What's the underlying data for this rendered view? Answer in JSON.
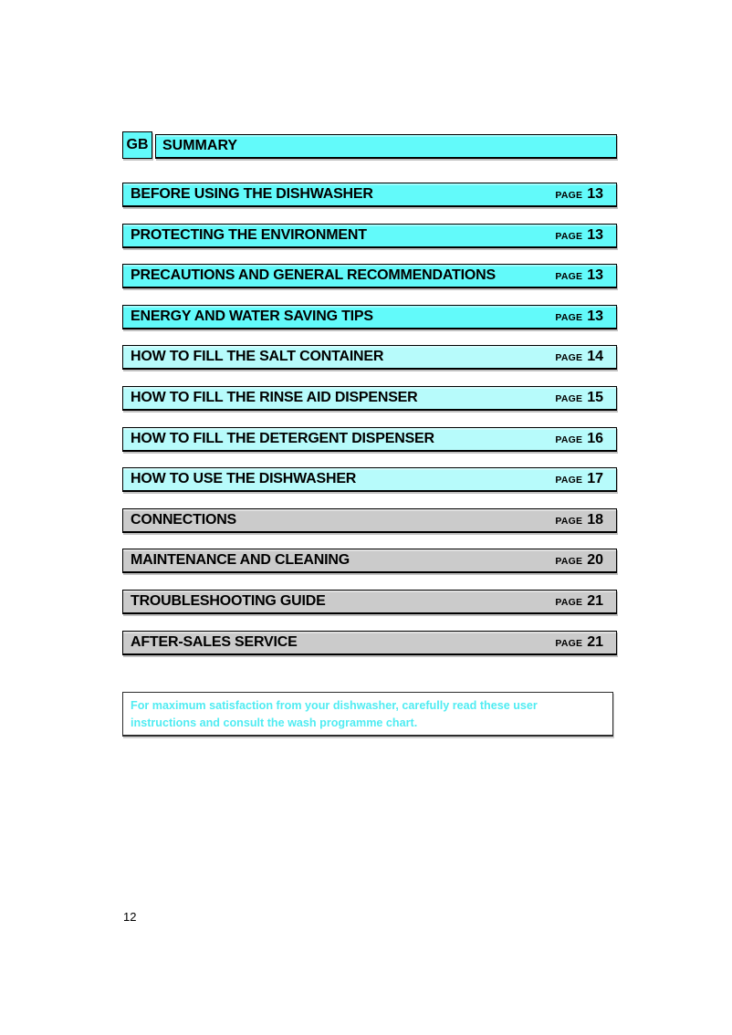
{
  "page": {
    "language_badge": "GB",
    "title": "SUMMARY",
    "page_label": "PAGE",
    "page_number": "12"
  },
  "toc": {
    "entries": [
      {
        "title": "BEFORE USING THE DISHWASHER",
        "page": "13",
        "group": "cyan"
      },
      {
        "title": "PROTECTING THE ENVIRONMENT",
        "page": "13",
        "group": "cyan"
      },
      {
        "title": "PRECAUTIONS AND GENERAL RECOMMENDATIONS",
        "page": "13",
        "group": "cyan"
      },
      {
        "title": "ENERGY AND WATER SAVING TIPS",
        "page": "13",
        "group": "cyan"
      },
      {
        "title": "HOW TO FILL THE SALT CONTAINER",
        "page": "14",
        "group": "pale_cyan"
      },
      {
        "title": "HOW TO FILL THE RINSE AID DISPENSER",
        "page": "15",
        "group": "pale_cyan"
      },
      {
        "title": "HOW TO FILL THE DETERGENT DISPENSER",
        "page": "16",
        "group": "pale_cyan"
      },
      {
        "title": "HOW TO USE THE DISHWASHER",
        "page": "17",
        "group": "pale_cyan"
      },
      {
        "title": "CONNECTIONS",
        "page": "18",
        "group": "gray"
      },
      {
        "title": "MAINTENANCE AND CLEANING",
        "page": "20",
        "group": "gray"
      },
      {
        "title": "TROUBLESHOOTING GUIDE",
        "page": "21",
        "group": "gray"
      },
      {
        "title": "AFTER-SALES SERVICE",
        "page": "21",
        "group": "gray"
      }
    ]
  },
  "note": {
    "text": "For maximum satisfaction from your dishwasher, carefully read these user instructions and consult the wash programme chart."
  },
  "colors": {
    "cyan": "#62fafa",
    "pale_cyan": "#b7fbfb",
    "gray": "#cbcbcb",
    "note_text": "#50ecf2"
  }
}
